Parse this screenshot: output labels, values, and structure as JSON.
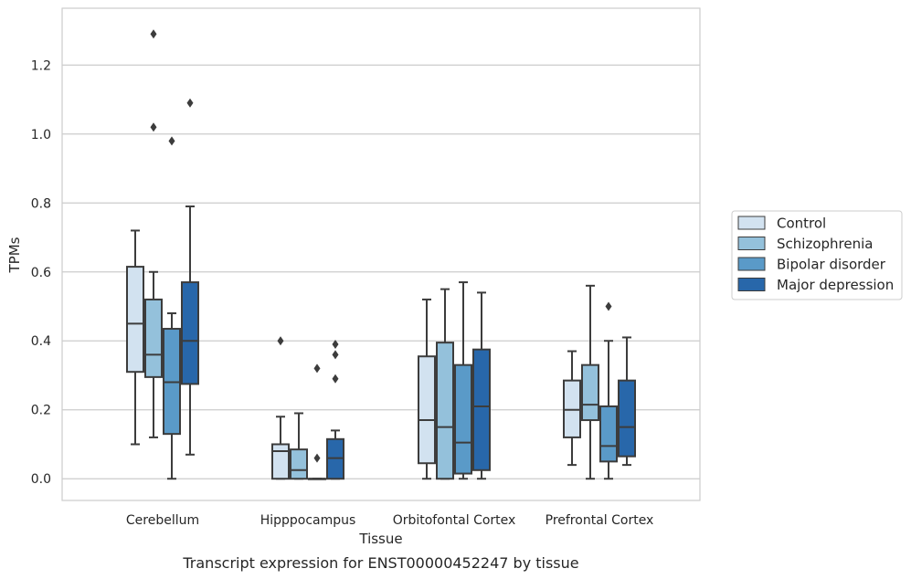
{
  "caption": "Transcript expression for ENST00000452247 by tissue",
  "chart_data": {
    "type": "box",
    "xlabel": "Tissue",
    "ylabel": "TPMs",
    "ylim": [
      -0.063,
      1.365
    ],
    "yticks": [
      0.0,
      0.2,
      0.4,
      0.6,
      0.8,
      1.0,
      1.2
    ],
    "ytick_labels": [
      "0.0",
      "0.2",
      "0.4",
      "0.6",
      "0.8",
      "1.0",
      "1.2"
    ],
    "grid": "horizontal",
    "legend_position": "right",
    "categories": [
      "Cerebellum",
      "Hipppocampus",
      "Orbitofontal Cortex",
      "Prefrontal Cortex"
    ],
    "series": [
      {
        "name": "Control",
        "color": "#d2e2f0",
        "boxes": [
          {
            "whislo": 0.1,
            "q1": 0.31,
            "med": 0.45,
            "q3": 0.615,
            "whishi": 0.72,
            "fliers": []
          },
          {
            "whislo": 0.0,
            "q1": 0.0,
            "med": 0.08,
            "q3": 0.1,
            "whishi": 0.18,
            "fliers": [
              0.4
            ]
          },
          {
            "whislo": 0.0,
            "q1": 0.045,
            "med": 0.17,
            "q3": 0.355,
            "whishi": 0.52,
            "fliers": []
          },
          {
            "whislo": 0.04,
            "q1": 0.12,
            "med": 0.2,
            "q3": 0.285,
            "whishi": 0.37,
            "fliers": []
          }
        ]
      },
      {
        "name": "Schizophrenia",
        "color": "#94c1db",
        "boxes": [
          {
            "whislo": 0.12,
            "q1": 0.295,
            "med": 0.36,
            "q3": 0.52,
            "whishi": 0.6,
            "fliers": [
              1.29,
              1.02
            ]
          },
          {
            "whislo": 0.0,
            "q1": 0.0,
            "med": 0.025,
            "q3": 0.085,
            "whishi": 0.19,
            "fliers": []
          },
          {
            "whislo": 0.0,
            "q1": 0.0,
            "med": 0.15,
            "q3": 0.395,
            "whishi": 0.55,
            "fliers": []
          },
          {
            "whislo": 0.0,
            "q1": 0.17,
            "med": 0.215,
            "q3": 0.33,
            "whishi": 0.56,
            "fliers": []
          }
        ]
      },
      {
        "name": "Bipolar disorder",
        "color": "#5a9ac8",
        "boxes": [
          {
            "whislo": 0.0,
            "q1": 0.13,
            "med": 0.28,
            "q3": 0.435,
            "whishi": 0.48,
            "fliers": [
              0.98
            ]
          },
          {
            "whislo": 0.0,
            "q1": 0.0,
            "med": 0.0,
            "q3": 0.0,
            "whishi": 0.0,
            "fliers": [
              0.32,
              0.06
            ]
          },
          {
            "whislo": 0.0,
            "q1": 0.015,
            "med": 0.105,
            "q3": 0.33,
            "whishi": 0.57,
            "fliers": []
          },
          {
            "whislo": 0.0,
            "q1": 0.05,
            "med": 0.095,
            "q3": 0.21,
            "whishi": 0.4,
            "fliers": [
              0.5
            ]
          }
        ]
      },
      {
        "name": "Major depression",
        "color": "#2867aa",
        "boxes": [
          {
            "whislo": 0.07,
            "q1": 0.275,
            "med": 0.4,
            "q3": 0.57,
            "whishi": 0.79,
            "fliers": [
              1.09
            ]
          },
          {
            "whislo": 0.0,
            "q1": 0.0,
            "med": 0.06,
            "q3": 0.115,
            "whishi": 0.14,
            "fliers": [
              0.39,
              0.36,
              0.29
            ]
          },
          {
            "whislo": 0.0,
            "q1": 0.025,
            "med": 0.21,
            "q3": 0.375,
            "whishi": 0.54,
            "fliers": []
          },
          {
            "whislo": 0.04,
            "q1": 0.065,
            "med": 0.15,
            "q3": 0.285,
            "whishi": 0.41,
            "fliers": []
          }
        ]
      }
    ]
  }
}
